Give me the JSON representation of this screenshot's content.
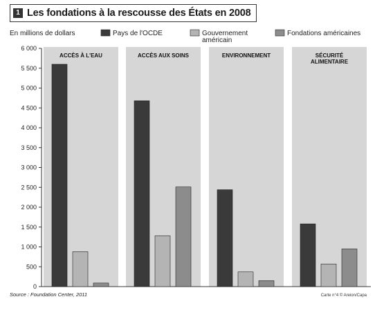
{
  "title": {
    "number": "1",
    "text": "Les fondations à la rescousse des États en 2008"
  },
  "unit_label": "En millions de dollars",
  "source": "Source : Foundation Center, 2011",
  "credit": "Carte n°4 © Areion/Capa",
  "colors": {
    "panel_bg": "#d6d6d6",
    "axis": "#333333"
  },
  "chart_data": {
    "type": "bar",
    "ylim": [
      0,
      6000
    ],
    "yticks": [
      "0",
      "500",
      "1 000",
      "1 500",
      "2 000",
      "2 500",
      "3 000",
      "3 500",
      "4 000",
      "4 500",
      "5 000",
      "5 500",
      "6 000"
    ],
    "categories": [
      {
        "label_lines": [
          "ACCÈS À L'EAU"
        ]
      },
      {
        "label_lines": [
          "ACCÈS AUX SOINS"
        ]
      },
      {
        "label_lines": [
          "ENVIRONNEMENT"
        ]
      },
      {
        "label_lines": [
          "SÉCURITÉ",
          "ALIMENTAIRE"
        ]
      }
    ],
    "series": [
      {
        "name": "Pays de l'OCDE",
        "name_lines": [
          "Pays de l'OCDE"
        ],
        "color": "#3a3a3a",
        "values": [
          5600,
          4680,
          2440,
          1580
        ]
      },
      {
        "name": "Gouvernement américain",
        "name_lines": [
          "Gouvernement",
          "américain"
        ],
        "color": "#b4b4b4",
        "values": [
          880,
          1280,
          370,
          570
        ]
      },
      {
        "name": "Fondations américaines",
        "name_lines": [
          "Fondations américaines"
        ],
        "color": "#8c8c8c",
        "values": [
          90,
          2510,
          150,
          950
        ]
      }
    ]
  }
}
